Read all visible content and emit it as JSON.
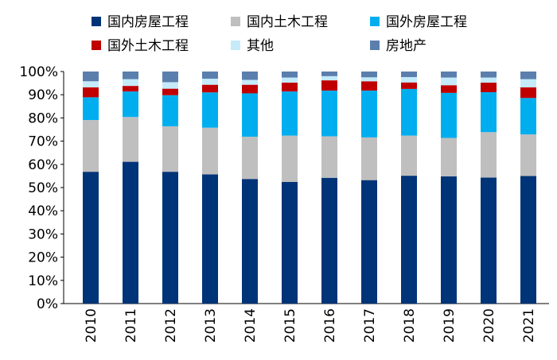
{
  "chart_data": {
    "type": "bar",
    "stacked": true,
    "percent_stacked": true,
    "categories": [
      "2010",
      "2011",
      "2012",
      "2013",
      "2014",
      "2015",
      "2016",
      "2017",
      "2018",
      "2019",
      "2020",
      "2021"
    ],
    "series": [
      {
        "name": "国内房屋工程",
        "color": "#003478",
        "values": [
          56.8,
          61.1,
          56.8,
          55.7,
          53.7,
          52.4,
          54.2,
          53.2,
          55.1,
          54.8,
          54.3,
          55.0
        ]
      },
      {
        "name": "国内土木工程",
        "color": "#bfbfbf",
        "values": [
          22.3,
          19.3,
          19.6,
          20.1,
          18.2,
          20.0,
          17.9,
          18.4,
          17.3,
          16.6,
          19.6,
          17.9
        ]
      },
      {
        "name": "国外房屋工程",
        "color": "#00aeef",
        "values": [
          9.8,
          11.0,
          13.4,
          15.2,
          18.7,
          19.0,
          19.7,
          20.2,
          20.1,
          19.4,
          17.2,
          15.7
        ]
      },
      {
        "name": "国外土木工程",
        "color": "#c00000",
        "values": [
          4.3,
          2.4,
          2.8,
          3.3,
          3.7,
          3.8,
          4.4,
          4.0,
          2.8,
          3.3,
          4.1,
          4.6
        ]
      },
      {
        "name": "其他",
        "color": "#c5ebfb",
        "values": [
          2.6,
          2.9,
          2.8,
          2.6,
          2.1,
          2.2,
          1.8,
          1.7,
          2.3,
          3.3,
          2.2,
          3.5
        ]
      },
      {
        "name": "房地产",
        "color": "#5b7fad",
        "values": [
          4.2,
          3.3,
          4.6,
          3.1,
          3.6,
          2.6,
          2.0,
          2.5,
          2.4,
          2.6,
          2.6,
          3.3
        ]
      }
    ],
    "ylim": [
      0,
      100
    ],
    "yticks": [
      "0%",
      "10%",
      "20%",
      "30%",
      "40%",
      "50%",
      "60%",
      "70%",
      "80%",
      "90%",
      "100%"
    ],
    "legend_position": "top",
    "grid": false
  }
}
